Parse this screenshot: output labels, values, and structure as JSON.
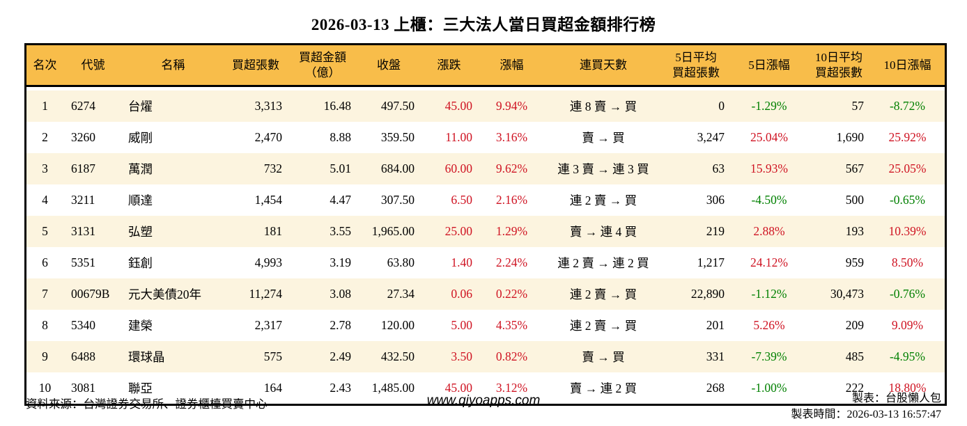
{
  "title": "2026-03-13 上櫃：三大法人當日買超金額排行榜",
  "colors": {
    "header_bg": "#f8bd4a",
    "row_alt_bg": "#fcf4df",
    "up_red": "#cf1322",
    "down_green": "#008000",
    "border": "#000000"
  },
  "table": {
    "headers": [
      "名次",
      "代號",
      "名稱",
      "買超張數",
      "買超金額\n（億）",
      "收盤",
      "漲跌",
      "漲幅",
      "連買天數",
      "5日平均\n買超張數",
      "5日漲幅",
      "10日平均\n買超張數",
      "10日漲幅"
    ],
    "rows": [
      {
        "rank": "1",
        "code": "6274",
        "name": "台燿",
        "volume": "3,313",
        "amount": "16.48",
        "close": "497.50",
        "change": "45.00",
        "change_dir": "up",
        "change_pct": "9.94%",
        "streak": "連 8 賣 → 買",
        "avg5": "0",
        "pct5": "-1.29%",
        "pct5_dir": "down",
        "avg10": "57",
        "pct10": "-8.72%",
        "pct10_dir": "down"
      },
      {
        "rank": "2",
        "code": "3260",
        "name": "威剛",
        "volume": "2,470",
        "amount": "8.88",
        "close": "359.50",
        "change": "11.00",
        "change_dir": "up",
        "change_pct": "3.16%",
        "streak": "賣 → 買",
        "avg5": "3,247",
        "pct5": "25.04%",
        "pct5_dir": "up",
        "avg10": "1,690",
        "pct10": "25.92%",
        "pct10_dir": "up"
      },
      {
        "rank": "3",
        "code": "6187",
        "name": "萬潤",
        "volume": "732",
        "amount": "5.01",
        "close": "684.00",
        "change": "60.00",
        "change_dir": "up",
        "change_pct": "9.62%",
        "streak": "連 3 賣 → 連 3 買",
        "avg5": "63",
        "pct5": "15.93%",
        "pct5_dir": "up",
        "avg10": "567",
        "pct10": "25.05%",
        "pct10_dir": "up"
      },
      {
        "rank": "4",
        "code": "3211",
        "name": "順達",
        "volume": "1,454",
        "amount": "4.47",
        "close": "307.50",
        "change": "6.50",
        "change_dir": "up",
        "change_pct": "2.16%",
        "streak": "連 2 賣 → 買",
        "avg5": "306",
        "pct5": "-4.50%",
        "pct5_dir": "down",
        "avg10": "500",
        "pct10": "-0.65%",
        "pct10_dir": "down"
      },
      {
        "rank": "5",
        "code": "3131",
        "name": "弘塑",
        "volume": "181",
        "amount": "3.55",
        "close": "1,965.00",
        "change": "25.00",
        "change_dir": "up",
        "change_pct": "1.29%",
        "streak": "賣 → 連 4 買",
        "avg5": "219",
        "pct5": "2.88%",
        "pct5_dir": "up",
        "avg10": "193",
        "pct10": "10.39%",
        "pct10_dir": "up"
      },
      {
        "rank": "6",
        "code": "5351",
        "name": "鈺創",
        "volume": "4,993",
        "amount": "3.19",
        "close": "63.80",
        "change": "1.40",
        "change_dir": "up",
        "change_pct": "2.24%",
        "streak": "連 2 賣 → 連 2 買",
        "avg5": "1,217",
        "pct5": "24.12%",
        "pct5_dir": "up",
        "avg10": "959",
        "pct10": "8.50%",
        "pct10_dir": "up"
      },
      {
        "rank": "7",
        "code": "00679B",
        "name": "元大美債20年",
        "volume": "11,274",
        "amount": "3.08",
        "close": "27.34",
        "change": "0.06",
        "change_dir": "up",
        "change_pct": "0.22%",
        "streak": "連 2 賣 → 買",
        "avg5": "22,890",
        "pct5": "-1.12%",
        "pct5_dir": "down",
        "avg10": "30,473",
        "pct10": "-0.76%",
        "pct10_dir": "down"
      },
      {
        "rank": "8",
        "code": "5340",
        "name": "建榮",
        "volume": "2,317",
        "amount": "2.78",
        "close": "120.00",
        "change": "5.00",
        "change_dir": "up",
        "change_pct": "4.35%",
        "streak": "連 2 賣 → 買",
        "avg5": "201",
        "pct5": "5.26%",
        "pct5_dir": "up",
        "avg10": "209",
        "pct10": "9.09%",
        "pct10_dir": "up"
      },
      {
        "rank": "9",
        "code": "6488",
        "name": "環球晶",
        "volume": "575",
        "amount": "2.49",
        "close": "432.50",
        "change": "3.50",
        "change_dir": "up",
        "change_pct": "0.82%",
        "streak": "賣 → 買",
        "avg5": "331",
        "pct5": "-7.39%",
        "pct5_dir": "down",
        "avg10": "485",
        "pct10": "-4.95%",
        "pct10_dir": "down"
      },
      {
        "rank": "10",
        "code": "3081",
        "name": "聯亞",
        "volume": "164",
        "amount": "2.43",
        "close": "1,485.00",
        "change": "45.00",
        "change_dir": "up",
        "change_pct": "3.12%",
        "streak": "賣 → 連 2 買",
        "avg5": "268",
        "pct5": "-1.00%",
        "pct5_dir": "down",
        "avg10": "222",
        "pct10": "18.80%",
        "pct10_dir": "up"
      }
    ]
  },
  "footer": {
    "source": "資料來源：台灣證券交易所、證券櫃檯買賣中心",
    "website": "www.qiyoapps.com",
    "maker": "製表：台股懶人包",
    "made_time": "製表時間：2026-03-13 16:57:47"
  },
  "chart_data": {
    "type": "table",
    "title": "2026-03-13 上櫃：三大法人當日買超金額排行榜",
    "columns": [
      "名次",
      "代號",
      "名稱",
      "買超張數",
      "買超金額（億）",
      "收盤",
      "漲跌",
      "漲幅",
      "連買天數",
      "5日平均買超張數",
      "5日漲幅",
      "10日平均買超張數",
      "10日漲幅"
    ],
    "rows": [
      [
        1,
        "6274",
        "台燿",
        3313,
        16.48,
        497.5,
        45.0,
        "9.94%",
        "連 8 賣 → 買",
        0,
        "-1.29%",
        57,
        "-8.72%"
      ],
      [
        2,
        "3260",
        "威剛",
        2470,
        8.88,
        359.5,
        11.0,
        "3.16%",
        "賣 → 買",
        3247,
        "25.04%",
        1690,
        "25.92%"
      ],
      [
        3,
        "6187",
        "萬潤",
        732,
        5.01,
        684.0,
        60.0,
        "9.62%",
        "連 3 賣 → 連 3 買",
        63,
        "15.93%",
        567,
        "25.05%"
      ],
      [
        4,
        "3211",
        "順達",
        1454,
        4.47,
        307.5,
        6.5,
        "2.16%",
        "連 2 賣 → 買",
        306,
        "-4.50%",
        500,
        "-0.65%"
      ],
      [
        5,
        "3131",
        "弘塑",
        181,
        3.55,
        1965.0,
        25.0,
        "1.29%",
        "賣 → 連 4 買",
        219,
        "2.88%",
        193,
        "10.39%"
      ],
      [
        6,
        "5351",
        "鈺創",
        4993,
        3.19,
        63.8,
        1.4,
        "2.24%",
        "連 2 賣 → 連 2 買",
        1217,
        "24.12%",
        959,
        "8.50%"
      ],
      [
        7,
        "00679B",
        "元大美債20年",
        11274,
        3.08,
        27.34,
        0.06,
        "0.22%",
        "連 2 賣 → 買",
        22890,
        "-1.12%",
        30473,
        "-0.76%"
      ],
      [
        8,
        "5340",
        "建榮",
        2317,
        2.78,
        120.0,
        5.0,
        "4.35%",
        "連 2 賣 → 買",
        201,
        "5.26%",
        209,
        "9.09%"
      ],
      [
        9,
        "6488",
        "環球晶",
        575,
        2.49,
        432.5,
        3.5,
        "0.82%",
        "賣 → 買",
        331,
        "-7.39%",
        485,
        "-4.95%"
      ],
      [
        10,
        "3081",
        "聯亞",
        164,
        2.43,
        1485.0,
        45.0,
        "3.12%",
        "賣 → 連 2 買",
        268,
        "-1.00%",
        222,
        "18.80%"
      ]
    ],
    "notes": "漲跌/漲幅 shown in red (up); negative percentages shown in green (down)"
  }
}
